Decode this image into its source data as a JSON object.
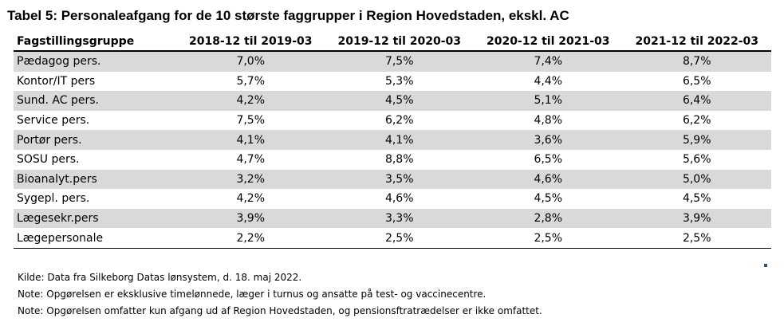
{
  "title": "Tabel 5: Personaleafgang for de 10 største faggrupper i Region Hovedstaden, ekskl. AC",
  "table": {
    "headers": [
      "Fagstillingsgruppe",
      "2018-12 til 2019-03",
      "2019-12 til 2020-03",
      "2020-12 til 2021-03",
      "2021-12 til 2022-03"
    ],
    "rows": [
      [
        "Pædagog pers.",
        "7,0%",
        "7,5%",
        "7,4%",
        "8,7%"
      ],
      [
        "Kontor/IT pers",
        "5,7%",
        "5,3%",
        "4,4%",
        "6,5%"
      ],
      [
        "Sund. AC pers.",
        "4,2%",
        "4,5%",
        "5,1%",
        "6,4%"
      ],
      [
        "Service pers.",
        "7,5%",
        "6,2%",
        "4,8%",
        "6,2%"
      ],
      [
        "Portør pers.",
        "4,1%",
        "4,1%",
        "3,6%",
        "5,9%"
      ],
      [
        "SOSU pers.",
        "4,7%",
        "8,8%",
        "6,5%",
        "5,6%"
      ],
      [
        "Bioanalyt.pers",
        "3,2%",
        "3,5%",
        "4,6%",
        "5,0%"
      ],
      [
        "Sygepl. pers.",
        "4,2%",
        "4,6%",
        "4,5%",
        "4,5%"
      ],
      [
        "Lægesekr.pers",
        "3,9%",
        "3,3%",
        "2,8%",
        "3,9%"
      ],
      [
        "Lægepersonale",
        "2,2%",
        "2,5%",
        "2,5%",
        "2,5%"
      ]
    ]
  },
  "notes": [
    "Kilde: Data fra Silkeborg Datas lønsystem, d. 18. maj 2022.",
    "Note: Opgørelsen er eksklusive timelønnede, læger i turnus og ansatte på test- og vaccinecentre.",
    "Note: Opgørelsen omfatter kun afgang ud af Region Hovedstaden, og pensionsftratrædelser er ikke omfattet."
  ],
  "colors": {
    "shaded_row": "#d9d9d9",
    "corner_mark": "#3a4d7a"
  }
}
